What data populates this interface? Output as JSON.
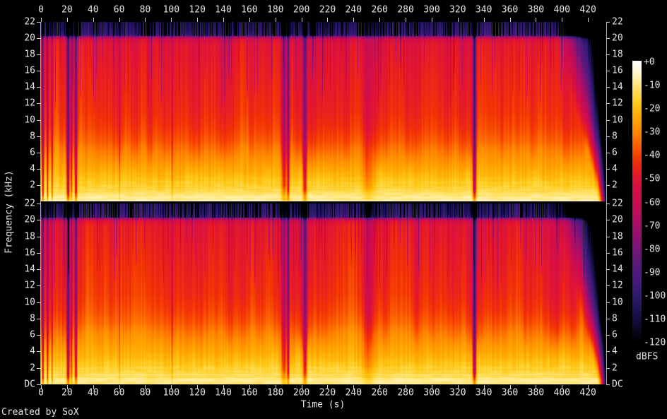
{
  "labels": {
    "time_axis": "Time (s)",
    "freq_axis": "Frequency (kHz)",
    "colorbar_unit": "dBFS",
    "credit": "Created by SoX",
    "dc_label": "DC"
  },
  "chart_data": {
    "type": "heatmap",
    "subtype": "audio-spectrogram",
    "title": "",
    "xlabel": "Time (s)",
    "ylabel": "Frequency (kHz)",
    "channels": [
      "upper",
      "lower"
    ],
    "x_range_s": [
      0,
      433.5
    ],
    "x_tick_step_s": 20,
    "x_ticks": [
      "0",
      "20",
      "40",
      "60",
      "80",
      "100",
      "120",
      "140",
      "160",
      "180",
      "200",
      "220",
      "240",
      "260",
      "280",
      "300",
      "320",
      "340",
      "360",
      "380",
      "400",
      "420"
    ],
    "y_range_khz": [
      0,
      22
    ],
    "y_ticks": [
      "22",
      "20",
      "18",
      "16",
      "14",
      "12",
      "10",
      "8",
      "6",
      "4",
      "2"
    ],
    "y_bottom_label": "DC",
    "colorbar": {
      "unit": "dBFS",
      "range_db": [
        0,
        -120
      ],
      "ticks": [
        "+0",
        "-10",
        "-20",
        "-30",
        "-40",
        "-50",
        "-60",
        "-70",
        "-80",
        "-90",
        "-100",
        "-110",
        "-120"
      ]
    },
    "palette_db_hex": [
      [
        0,
        "#ffffff"
      ],
      [
        -6,
        "#fff5c0"
      ],
      [
        -12,
        "#ffe060"
      ],
      [
        -18,
        "#ffc818"
      ],
      [
        -24,
        "#ffa800"
      ],
      [
        -30,
        "#ff8800"
      ],
      [
        -36,
        "#fb5e00"
      ],
      [
        -42,
        "#f33404"
      ],
      [
        -48,
        "#e61a28"
      ],
      [
        -54,
        "#d60f44"
      ],
      [
        -62,
        "#c70c55"
      ],
      [
        -70,
        "#a81066"
      ],
      [
        -78,
        "#811476"
      ],
      [
        -86,
        "#5c187c"
      ],
      [
        -94,
        "#421b7c"
      ],
      [
        -102,
        "#2a1868"
      ],
      [
        -110,
        "#130e40"
      ],
      [
        -120,
        "#000000"
      ]
    ],
    "freq_profile_db": [
      [
        0,
        -7
      ],
      [
        0.7,
        -11
      ],
      [
        1.5,
        -14
      ],
      [
        2.5,
        -18
      ],
      [
        3.5,
        -22
      ],
      [
        4.5,
        -26
      ],
      [
        5.5,
        -30
      ],
      [
        6.5,
        -34
      ],
      [
        7.5,
        -38
      ],
      [
        9,
        -42
      ],
      [
        11,
        -45
      ],
      [
        14,
        -47
      ],
      [
        17,
        -49
      ],
      [
        19.3,
        -51
      ],
      [
        19.9,
        -55
      ],
      [
        20.15,
        -70
      ],
      [
        20.45,
        -92
      ],
      [
        21,
        -97
      ],
      [
        22,
        -101
      ]
    ],
    "top_noise_band_khz": 20.3,
    "top_band_blackout_after_s": 403,
    "quiet_gaps": [
      {
        "t": 1.2,
        "w": 0.7,
        "depth_db": 38,
        "f_low_khz": 0.8
      },
      {
        "t": 4.8,
        "w": 0.6,
        "depth_db": 30,
        "f_low_khz": 0.8
      },
      {
        "t": 8.3,
        "w": 0.5,
        "depth_db": 24,
        "f_low_khz": 0.8
      },
      {
        "t": 20.6,
        "w": 1.1,
        "depth_db": 48,
        "f_low_khz": 1.2
      },
      {
        "t": 23.2,
        "w": 0.7,
        "depth_db": 26,
        "f_low_khz": 1.5
      },
      {
        "t": 26.6,
        "w": 0.9,
        "depth_db": 42,
        "f_low_khz": 1.2
      },
      {
        "t": 60.0,
        "w": 0.5,
        "depth_db": 14,
        "f_low_khz": 3.0
      },
      {
        "t": 100.5,
        "w": 0.6,
        "depth_db": 12,
        "f_low_khz": 3.0
      },
      {
        "t": 186.3,
        "w": 2.0,
        "depth_db": 26,
        "f_low_khz": 2.0
      },
      {
        "t": 189.6,
        "w": 0.9,
        "depth_db": 38,
        "f_low_khz": 1.5
      },
      {
        "t": 202.4,
        "w": 1.5,
        "depth_db": 34,
        "f_low_khz": 1.5
      },
      {
        "t": 251.0,
        "w": 4.5,
        "depth_db": 13,
        "f_low_khz": 2.5
      },
      {
        "t": 332.6,
        "w": 1.3,
        "depth_db": 52,
        "f_low_khz": 1.5
      }
    ],
    "fade_out": {
      "start_s": 392.5,
      "end_s": 434,
      "span_s": 41,
      "exponent": 1.7,
      "max_db": 125
    },
    "texture": {
      "slow_section_db": 3,
      "medium_streak_db": 4,
      "fast_streak_db": 3.5,
      "dark_streak_prob": 0.1,
      "dark_streak_db_min": 8,
      "dark_streak_db_max": 26,
      "low_band_row_db": 2.2,
      "low_band_blob_db": 2.4
    }
  }
}
